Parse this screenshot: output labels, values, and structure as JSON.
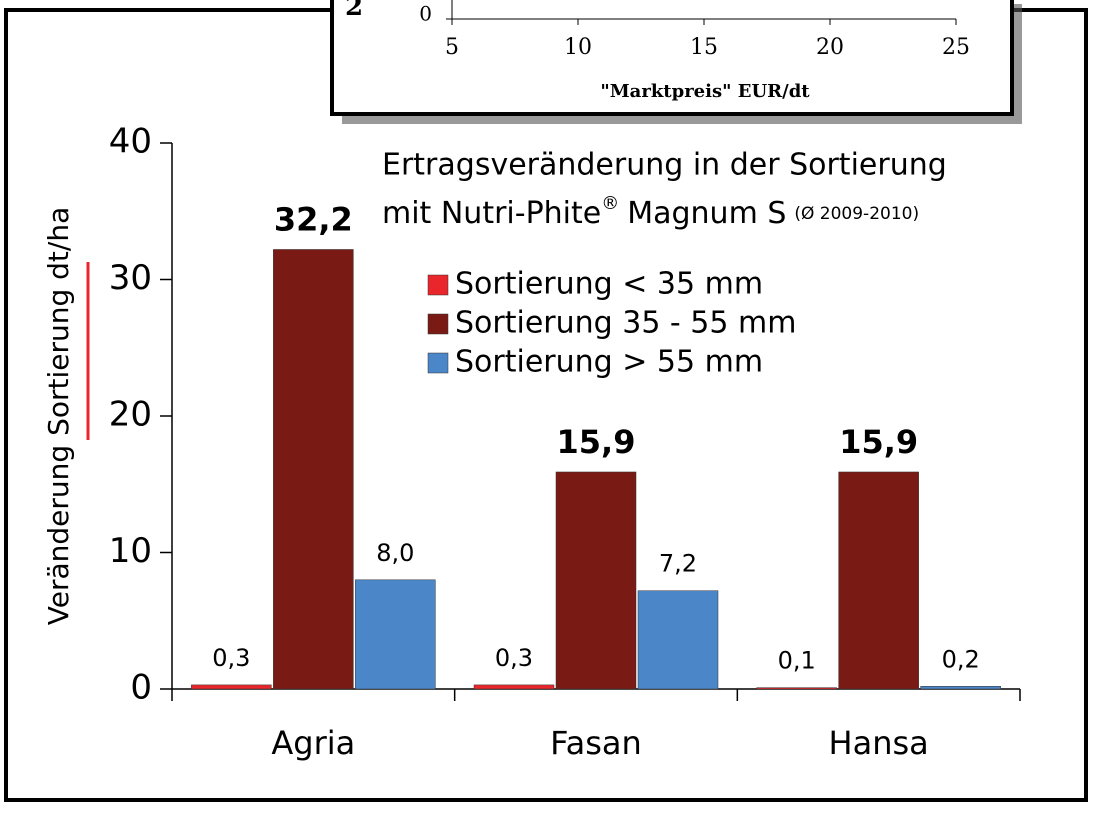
{
  "chart_data": [
    {
      "type": "bar",
      "title": [
        "Ertragsveränderung in der Sortierung",
        "mit Nutri-Phite",
        "®",
        "Magnum S",
        "(Ø 2009-2010)"
      ],
      "ylabel": "Veränderung Sortierung dt/ha",
      "categories": [
        "Agria",
        "Fasan",
        "Hansa"
      ],
      "series": [
        {
          "name": "Sortierung < 35 mm",
          "color": "#e8262b",
          "values": [
            0.3,
            0.3,
            0.1
          ],
          "value_labels": [
            "0,3",
            "0,3",
            "0,1"
          ]
        },
        {
          "name": "Sortierung 35 - 55 mm",
          "color": "#7a1a14",
          "values": [
            32.2,
            15.9,
            15.9
          ],
          "value_labels": [
            "32,2",
            "15,9",
            "15,9"
          ]
        },
        {
          "name": "Sortierung > 55 mm",
          "color": "#4a86c8",
          "values": [
            8.0,
            7.2,
            0.2
          ],
          "value_labels": [
            "8,0",
            "7,2",
            "0,2"
          ]
        }
      ],
      "ylim": [
        0,
        40
      ],
      "yticks": [
        0,
        10,
        20,
        30,
        40
      ],
      "legend": "upper right"
    },
    {
      "type": "line",
      "ylabel": "2",
      "xlabel": "\"Marktpreis\" EUR/dt",
      "xlim": [
        5,
        25
      ],
      "xticks": [
        5,
        10,
        15,
        20,
        25
      ],
      "yticks": [
        0
      ]
    }
  ]
}
